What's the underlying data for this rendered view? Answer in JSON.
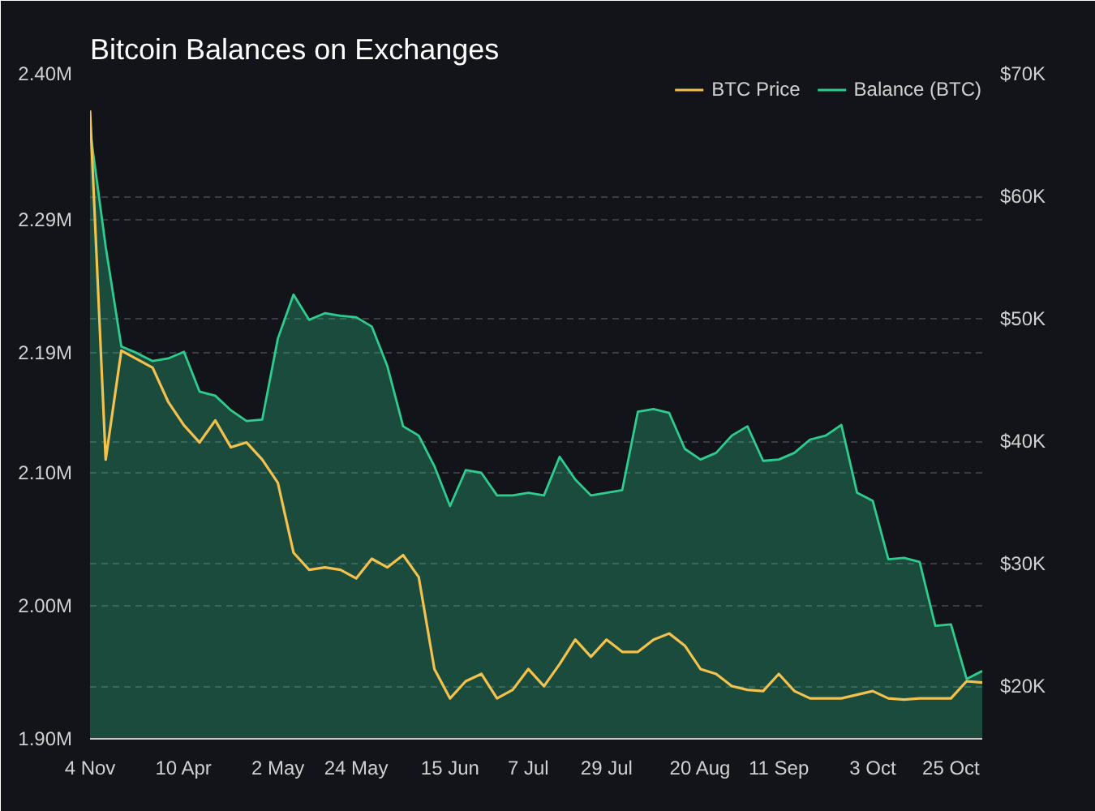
{
  "chart_data": {
    "type": "area",
    "title": "Bitcoin Balances on Exchanges",
    "categories": [
      "4 Nov",
      null,
      null,
      null,
      null,
      null,
      "10 Apr",
      null,
      null,
      null,
      null,
      null,
      "2 May",
      null,
      null,
      null,
      null,
      "24 May",
      null,
      null,
      null,
      null,
      null,
      "15 Jun",
      null,
      null,
      null,
      null,
      "7 Jul",
      null,
      null,
      null,
      null,
      "29 Jul",
      null,
      null,
      null,
      null,
      null,
      "20 Aug",
      null,
      null,
      null,
      null,
      "11 Sep",
      null,
      null,
      null,
      null,
      null,
      "3 Oct",
      null,
      null,
      null,
      null,
      "25 Oct",
      null,
      null
    ],
    "series": [
      {
        "name": "BTC Price",
        "type": "line",
        "axis": "y2",
        "color": "#f2c14e",
        "values": [
          67000,
          38500,
          47400,
          46700,
          46000,
          43200,
          41300,
          39900,
          41700,
          39500,
          39900,
          38500,
          36600,
          30900,
          29500,
          29700,
          29500,
          28800,
          30400,
          29700,
          30700,
          28900,
          21400,
          19000,
          20400,
          21000,
          19000,
          19700,
          21400,
          20000,
          21800,
          23800,
          22400,
          23800,
          22800,
          22800,
          23800,
          24300,
          23300,
          21400,
          21000,
          20000,
          19700,
          19600,
          21000,
          19600,
          19000,
          19000,
          19000,
          19300,
          19600,
          19000,
          18900,
          19000,
          19000,
          19000,
          20400,
          20300
        ]
      },
      {
        "name": "Balance (BTC)",
        "color": "#2ecc8f",
        "values": [
          2358000,
          2270000,
          2195000,
          2190000,
          2184000,
          2186000,
          2191000,
          2161000,
          2158000,
          2147000,
          2139000,
          2140000,
          2201000,
          2234000,
          2215000,
          2220000,
          2218000,
          2217000,
          2210000,
          2180000,
          2135000,
          2128000,
          2105000,
          2075000,
          2102000,
          2100000,
          2083000,
          2083000,
          2085000,
          2083000,
          2112000,
          2095000,
          2083000,
          2085000,
          2087000,
          2146000,
          2148000,
          2145000,
          2118000,
          2110000,
          2115000,
          2128000,
          2135000,
          2109000,
          2110000,
          2115000,
          2125000,
          2128000,
          2136000,
          2085000,
          2079000,
          2035000,
          2036000,
          2033000,
          1985000,
          1986000,
          1945000,
          1951000
        ]
      }
    ],
    "ylim": [
      1900000,
      2400000
    ],
    "yticks": [
      {
        "value": 1900000,
        "label": "1.90M"
      },
      {
        "value": 2000000,
        "label": "2.00M"
      },
      {
        "value": 2100000,
        "label": "2.10M"
      },
      {
        "value": 2190000,
        "label": "2.19M"
      },
      {
        "value": 2290000,
        "label": "2.29M"
      },
      {
        "value": 2400000,
        "label": "2.40M"
      }
    ],
    "y2lim": [
      15700,
      70000
    ],
    "y2ticks": [
      {
        "value": 20000,
        "label": "$20K"
      },
      {
        "value": 30000,
        "label": "$30K"
      },
      {
        "value": 40000,
        "label": "$40K"
      },
      {
        "value": 50000,
        "label": "$50K"
      },
      {
        "value": 60000,
        "label": "$60K"
      },
      {
        "value": 70000,
        "label": "$70K"
      }
    ],
    "grid": "y",
    "legend": "top right"
  }
}
